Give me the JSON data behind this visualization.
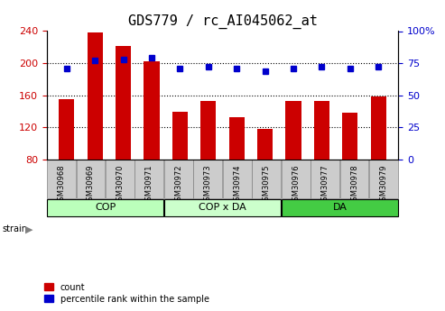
{
  "title": "GDS779 / rc_AI045062_at",
  "samples": [
    "GSM30968",
    "GSM30969",
    "GSM30970",
    "GSM30971",
    "GSM30972",
    "GSM30973",
    "GSM30974",
    "GSM30975",
    "GSM30976",
    "GSM30977",
    "GSM30978",
    "GSM30979"
  ],
  "counts": [
    155,
    238,
    222,
    202,
    140,
    153,
    133,
    118,
    153,
    153,
    138,
    158
  ],
  "percentiles": [
    71,
    77,
    78,
    79,
    71,
    72,
    71,
    69,
    71,
    72,
    71,
    72
  ],
  "groups": [
    {
      "label": "COP",
      "start": 0,
      "end": 4,
      "color": "#bbffbb"
    },
    {
      "label": "COP x DA",
      "start": 4,
      "end": 8,
      "color": "#ccffcc"
    },
    {
      "label": "DA",
      "start": 8,
      "end": 12,
      "color": "#44cc44"
    }
  ],
  "ylim_left": [
    80,
    240
  ],
  "ylim_right": [
    0,
    100
  ],
  "yticks_left": [
    80,
    120,
    160,
    200,
    240
  ],
  "yticks_right": [
    0,
    25,
    50,
    75,
    100
  ],
  "grid_lines": [
    120,
    160,
    200
  ],
  "bar_color": "#cc0000",
  "dot_color": "#0000cc",
  "tick_color_left": "#cc0000",
  "tick_color_right": "#0000cc",
  "title_fontsize": 11,
  "axis_fontsize": 8,
  "sample_fontsize": 6,
  "group_fontsize": 8,
  "legend_fontsize": 7
}
